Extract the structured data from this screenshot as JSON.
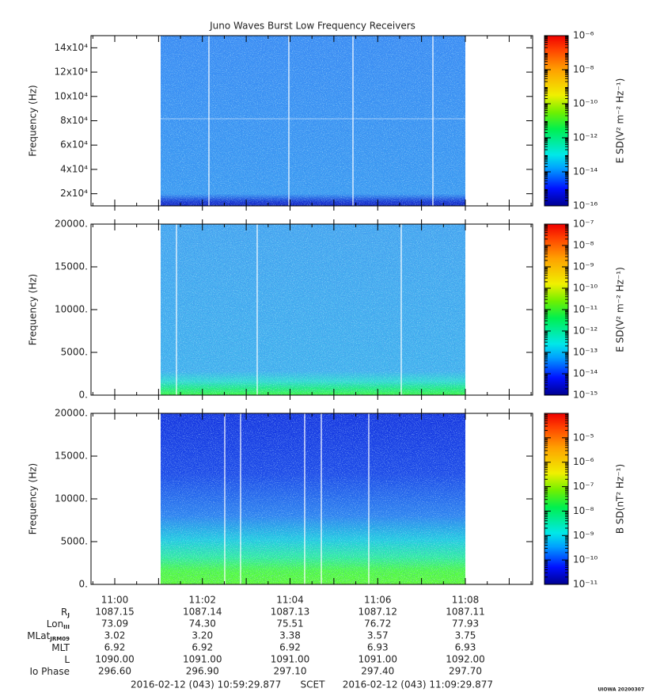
{
  "title": "Juno Waves Burst Low Frequency Receivers",
  "chart_data": [
    {
      "type": "spectrogram",
      "ylabel": "Frequency (Hz)",
      "ylim": [
        10000,
        150000
      ],
      "yticks": [
        {
          "value": 20000,
          "label": "2x10⁴"
        },
        {
          "value": 40000,
          "label": "4x10⁴"
        },
        {
          "value": 60000,
          "label": "6x10⁴"
        },
        {
          "value": 80000,
          "label": "8x10⁴"
        },
        {
          "value": 100000,
          "label": "10x10⁴"
        },
        {
          "value": 120000,
          "label": "12x10⁴"
        },
        {
          "value": 140000,
          "label": "14x10⁴"
        }
      ],
      "colorbar": {
        "label": "E SD(V² m⁻² Hz⁻¹)",
        "log": true,
        "zlim": [
          1e-16,
          1e-06
        ],
        "zticks": [
          {
            "value": 1e-16,
            "label": "10⁻¹⁶"
          },
          {
            "value": 1e-14,
            "label": "10⁻¹⁴"
          },
          {
            "value": 1e-12,
            "label": "10⁻¹²"
          },
          {
            "value": 1e-10,
            "label": "10⁻¹⁰"
          },
          {
            "value": 1e-08,
            "label": "10⁻⁸"
          },
          {
            "value": 1e-06,
            "label": "10⁻⁶"
          }
        ]
      }
    },
    {
      "type": "spectrogram",
      "ylabel": "Frequency (Hz)",
      "ylim": [
        0,
        20000
      ],
      "yticks": [
        {
          "value": 0,
          "label": "0."
        },
        {
          "value": 5000,
          "label": "5000."
        },
        {
          "value": 10000,
          "label": "10000."
        },
        {
          "value": 15000,
          "label": "15000."
        },
        {
          "value": 20000,
          "label": "20000."
        }
      ],
      "colorbar": {
        "label": "E SD(V² m⁻² Hz⁻¹)",
        "log": true,
        "zlim": [
          1e-15,
          1e-07
        ],
        "zticks": [
          {
            "value": 1e-15,
            "label": "10⁻¹⁵"
          },
          {
            "value": 1e-14,
            "label": "10⁻¹⁴"
          },
          {
            "value": 1e-13,
            "label": "10⁻¹³"
          },
          {
            "value": 1e-12,
            "label": "10⁻¹²"
          },
          {
            "value": 1e-11,
            "label": "10⁻¹¹"
          },
          {
            "value": 1e-10,
            "label": "10⁻¹⁰"
          },
          {
            "value": 1e-09,
            "label": "10⁻⁹"
          },
          {
            "value": 1e-08,
            "label": "10⁻⁸"
          },
          {
            "value": 1e-07,
            "label": "10⁻⁷"
          }
        ]
      }
    },
    {
      "type": "spectrogram",
      "ylabel": "Frequency (Hz)",
      "ylim": [
        0,
        20000
      ],
      "yticks": [
        {
          "value": 0,
          "label": "0."
        },
        {
          "value": 5000,
          "label": "5000."
        },
        {
          "value": 10000,
          "label": "10000."
        },
        {
          "value": 15000,
          "label": "15000."
        },
        {
          "value": 20000,
          "label": "20000."
        }
      ],
      "colorbar": {
        "label": "B SD(nT² Hz⁻¹)",
        "log": true,
        "zlim": [
          1e-11,
          0.0001
        ],
        "zticks": [
          {
            "value": 1e-11,
            "label": "10⁻¹¹"
          },
          {
            "value": 1e-10,
            "label": "10⁻¹⁰"
          },
          {
            "value": 1e-09,
            "label": "10⁻⁹"
          },
          {
            "value": 1e-08,
            "label": "10⁻⁸"
          },
          {
            "value": 1e-07,
            "label": "10⁻⁷"
          },
          {
            "value": 1e-06,
            "label": "10⁻⁶"
          },
          {
            "value": 1e-05,
            "label": "10⁻⁵"
          }
        ]
      }
    }
  ],
  "time_axis": {
    "ticks": [
      "11:00",
      "11:02",
      "11:04",
      "11:06",
      "11:08"
    ]
  },
  "ephemeris": [
    {
      "label": "R",
      "sub": "J",
      "values": [
        "1087.15",
        "1087.14",
        "1087.13",
        "1087.12",
        "1087.11"
      ]
    },
    {
      "label": "Lon",
      "sub": "III",
      "values": [
        "73.09",
        "74.30",
        "75.51",
        "76.72",
        "77.93"
      ]
    },
    {
      "label": "MLat",
      "sub": "JRM09",
      "values": [
        "3.02",
        "3.20",
        "3.38",
        "3.57",
        "3.75"
      ]
    },
    {
      "label": "MLT",
      "values": [
        "6.92",
        "6.92",
        "6.92",
        "6.93",
        "6.93"
      ]
    },
    {
      "label": "L",
      "values": [
        "1090.00",
        "1091.00",
        "1091.00",
        "1091.00",
        "1092.00"
      ]
    },
    {
      "label": "Io Phase",
      "values": [
        "296.60",
        "296.90",
        "297.10",
        "297.40",
        "297.70"
      ]
    }
  ],
  "footer": {
    "start": "2016-02-12 (043) 10:59:29.877",
    "frame": "SCET",
    "end": "2016-02-12 (043) 11:09:29.877",
    "stamp": "UIOWA 20200307"
  }
}
